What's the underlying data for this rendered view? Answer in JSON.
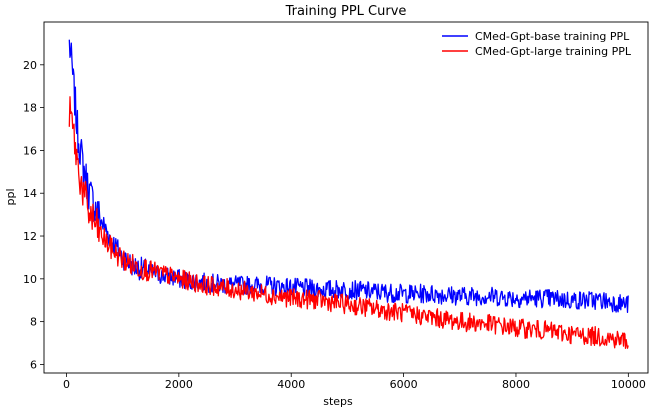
{
  "chart_data": {
    "type": "line",
    "title": "Training PPL Curve",
    "xlabel": "steps",
    "ylabel": "ppl",
    "xlim": [
      -400,
      10350
    ],
    "ylim": [
      5.6,
      22.0
    ],
    "xticks": [
      0,
      2000,
      4000,
      6000,
      8000,
      10000
    ],
    "yticks": [
      6,
      8,
      10,
      12,
      14,
      16,
      18,
      20
    ],
    "legend_position": "top-right",
    "grid": false,
    "series": [
      {
        "name": "CMed-Gpt-base training PPL",
        "color": "#0000ff",
        "x": [
          50,
          100,
          200,
          300,
          400,
          500,
          600,
          800,
          1000,
          1200,
          1500,
          2000,
          2500,
          3000,
          3500,
          4000,
          4500,
          5000,
          5500,
          6000,
          6500,
          7000,
          7500,
          8000,
          8500,
          9000,
          9500,
          10000
        ],
        "y": [
          21.0,
          19.8,
          16.8,
          15.2,
          14.1,
          13.4,
          12.8,
          11.8,
          11.0,
          10.6,
          10.3,
          10.0,
          9.8,
          9.7,
          9.7,
          9.6,
          9.5,
          9.5,
          9.4,
          9.3,
          9.3,
          9.2,
          9.2,
          9.1,
          9.1,
          9.0,
          9.0,
          8.8
        ]
      },
      {
        "name": "CMed-Gpt-large training PPL",
        "color": "#ff0000",
        "x": [
          50,
          100,
          200,
          300,
          400,
          500,
          600,
          800,
          1000,
          1200,
          1500,
          2000,
          2500,
          3000,
          3500,
          4000,
          4500,
          5000,
          5500,
          6000,
          6500,
          7000,
          7500,
          8000,
          8500,
          9000,
          9500,
          10000
        ],
        "y": [
          17.8,
          17.3,
          15.3,
          14.0,
          13.1,
          12.6,
          12.1,
          11.4,
          10.9,
          10.6,
          10.4,
          10.0,
          9.7,
          9.5,
          9.3,
          9.1,
          9.0,
          8.8,
          8.6,
          8.4,
          8.2,
          8.0,
          7.9,
          7.7,
          7.6,
          7.4,
          7.3,
          7.1
        ]
      }
    ]
  }
}
